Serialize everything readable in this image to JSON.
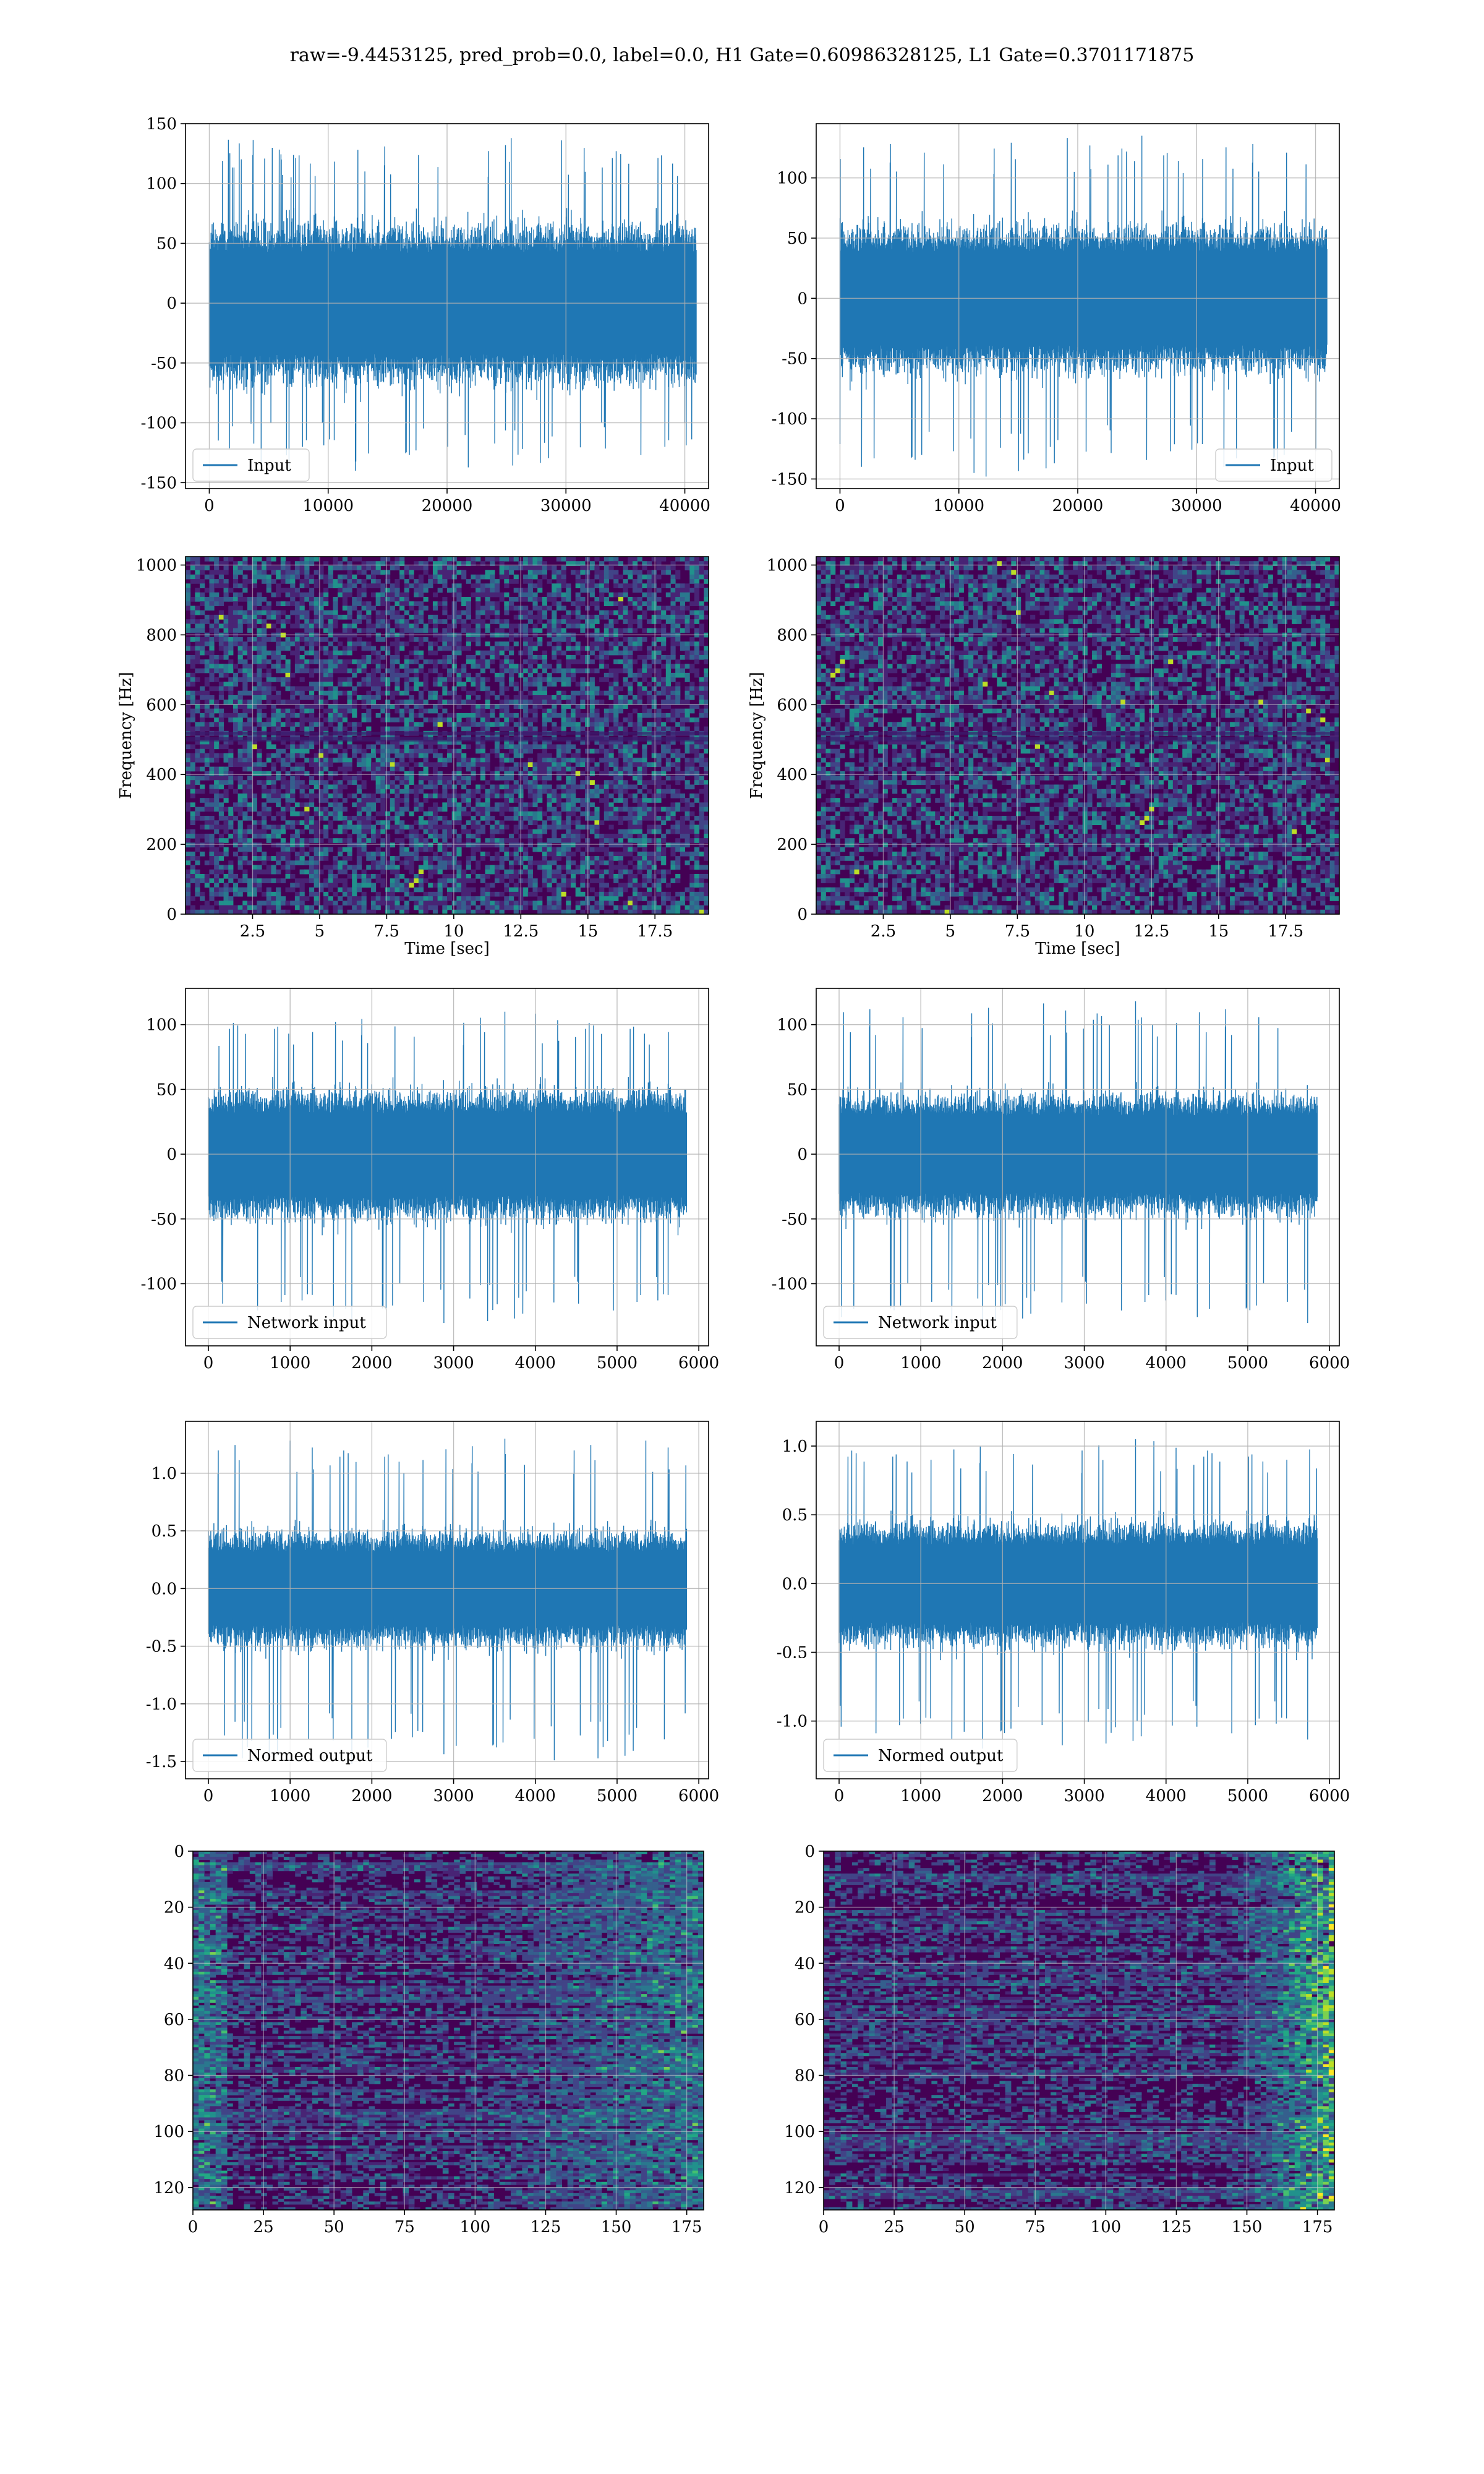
{
  "figure": {
    "title": "raw=-9.4453125, pred_prob=0.0, label=0.0, H1 Gate=0.60986328125, L1 Gate=0.3701171875"
  },
  "colors": {
    "line": "#1f77b4",
    "grid": "#b0b0b0",
    "viridis_low": "#440154",
    "viridis_high": "#fde725"
  },
  "chart_data": [
    {
      "id": "input-left",
      "type": "line",
      "legend": "Input",
      "legend_loc": "lower left",
      "xlim": [
        -2000,
        42000
      ],
      "ylim": [
        -155,
        150
      ],
      "xticks": [
        0,
        10000,
        20000,
        30000,
        40000
      ],
      "yticks": [
        -150,
        -100,
        -50,
        0,
        50,
        100,
        150
      ],
      "signal": {
        "x_start": 0,
        "x_end": 40960,
        "band": 60,
        "peak_max": 138,
        "peak_min": -140
      },
      "grid": true
    },
    {
      "id": "input-right",
      "type": "line",
      "legend": "Input",
      "legend_loc": "lower right",
      "xlim": [
        -2000,
        42000
      ],
      "ylim": [
        -158,
        145
      ],
      "xticks": [
        0,
        10000,
        20000,
        30000,
        40000
      ],
      "yticks": [
        -150,
        -100,
        -50,
        0,
        50,
        100
      ],
      "signal": {
        "x_start": 0,
        "x_end": 40960,
        "band": 55,
        "peak_max": 135,
        "peak_min": -148
      },
      "grid": true
    },
    {
      "id": "spec-left",
      "type": "heatmap",
      "xlabel": "Time [sec]",
      "ylabel": "Frequency [Hz]",
      "xlim": [
        0,
        19.5
      ],
      "ylim": [
        0,
        1024
      ],
      "xticks": [
        2.5,
        5.0,
        7.5,
        10.0,
        12.5,
        15.0,
        17.5
      ],
      "ytick_values": [
        0,
        200,
        400,
        600,
        800,
        1000
      ],
      "grid": true
    },
    {
      "id": "spec-right",
      "type": "heatmap",
      "xlabel": "Time [sec]",
      "ylabel": "Frequency [Hz]",
      "xlim": [
        0,
        19.5
      ],
      "ylim": [
        0,
        1024
      ],
      "xticks": [
        2.5,
        5.0,
        7.5,
        10.0,
        12.5,
        15.0,
        17.5
      ],
      "ytick_values": [
        0,
        200,
        400,
        600,
        800,
        1000
      ],
      "grid": true
    },
    {
      "id": "network-left",
      "type": "line",
      "legend": "Network input",
      "legend_loc": "lower left",
      "xlim": [
        -280,
        6120
      ],
      "ylim": [
        -148,
        128
      ],
      "xticks": [
        0,
        1000,
        2000,
        3000,
        4000,
        5000,
        6000
      ],
      "yticks": [
        -100,
        -50,
        0,
        50,
        100
      ],
      "signal": {
        "x_start": 0,
        "x_end": 5850,
        "band": 45,
        "peak_max": 110,
        "peak_min": -133
      },
      "grid": true
    },
    {
      "id": "network-right",
      "type": "line",
      "legend": "Network input",
      "legend_loc": "lower left",
      "xlim": [
        -280,
        6120
      ],
      "ylim": [
        -148,
        128
      ],
      "xticks": [
        0,
        1000,
        2000,
        3000,
        4000,
        5000,
        6000
      ],
      "yticks": [
        -100,
        -50,
        0,
        50,
        100
      ],
      "signal": {
        "x_start": 0,
        "x_end": 5850,
        "band": 42,
        "peak_max": 118,
        "peak_min": -133
      },
      "grid": true
    },
    {
      "id": "normed-left",
      "type": "line",
      "legend": "Normed output",
      "legend_loc": "lower left",
      "xlim": [
        -280,
        6120
      ],
      "ylim": [
        -1.65,
        1.45
      ],
      "xticks": [
        0,
        1000,
        2000,
        3000,
        4000,
        5000,
        6000
      ],
      "yticks": [
        -1.5,
        -1.0,
        -0.5,
        0.0,
        0.5,
        1.0
      ],
      "signal": {
        "x_start": 0,
        "x_end": 5850,
        "band": 0.45,
        "peak_max": 1.3,
        "peak_min": -1.52
      },
      "grid": true
    },
    {
      "id": "normed-right",
      "type": "line",
      "legend": "Normed output",
      "legend_loc": "lower left",
      "xlim": [
        -280,
        6120
      ],
      "ylim": [
        -1.42,
        1.18
      ],
      "xticks": [
        0,
        1000,
        2000,
        3000,
        4000,
        5000,
        6000
      ],
      "yticks": [
        -1.0,
        -0.5,
        0.0,
        0.5,
        1.0
      ],
      "signal": {
        "x_start": 0,
        "x_end": 5850,
        "band": 0.4,
        "peak_max": 1.05,
        "peak_min": -1.2
      },
      "grid": true
    },
    {
      "id": "feature-left",
      "type": "heatmap",
      "xlim": [
        0,
        181
      ],
      "ylim": [
        128,
        0
      ],
      "xticks": [
        0,
        25,
        50,
        75,
        100,
        125,
        150,
        175
      ],
      "ytick_values": [
        0,
        20,
        40,
        60,
        80,
        100,
        120
      ],
      "grid": true
    },
    {
      "id": "feature-right",
      "type": "heatmap",
      "xlim": [
        0,
        181
      ],
      "ylim": [
        128,
        0
      ],
      "xticks": [
        0,
        25,
        50,
        75,
        100,
        125,
        150,
        175
      ],
      "ytick_values": [
        0,
        20,
        40,
        60,
        80,
        100,
        120
      ],
      "grid": true
    }
  ]
}
